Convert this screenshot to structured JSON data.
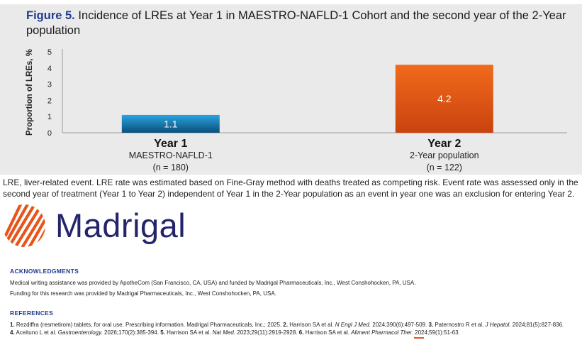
{
  "figure": {
    "label": "Figure 5.",
    "title": "Incidence of LREs at Year 1 in MAESTRO-NAFLD-1 Cohort and the second year of the 2-Year population"
  },
  "chart_data": {
    "type": "bar",
    "categories": [
      "Year 1",
      "Year 2"
    ],
    "category_sublabels": [
      [
        "MAESTRO-NAFLD-1",
        "(n = 180)"
      ],
      [
        "2-Year population",
        "(n = 122)"
      ]
    ],
    "values": [
      1.1,
      4.2
    ],
    "value_labels": [
      "1.1",
      "4.2"
    ],
    "bar_colors": [
      "#1c8fcc",
      "#e8541a"
    ],
    "ylabel": "Proportion of LREs, %",
    "ylim": [
      0,
      5
    ],
    "yticks": [
      "0",
      "1",
      "2",
      "3",
      "4",
      "5"
    ],
    "grid": false
  },
  "footnote": "LRE, liver-related event. LRE rate was estimated based on Fine-Gray method with deaths treated as competing risk. Event rate was assessed only in the second year of treatment (Year 1 to Year 2) independent of Year 1 in the 2-Year population as an event in year one was an exclusion for entering Year 2.",
  "logo": {
    "text": "Madrigal",
    "icon": "madrigal-logo-icon",
    "color": "#e8541a"
  },
  "acknowledgments": {
    "heading": "ACKNOWLEDGMENTS",
    "lines": [
      "Medical writing assistance was provided by ApotheCom (San Francisco, CA, USA) and funded by Madrigal Pharmaceuticals, Inc., West Conshohocken, PA, USA.",
      "Funding for this research was provided by Madrigal Pharmaceuticals, Inc., West Conshohocken, PA, USA."
    ]
  },
  "references": {
    "heading": "REFERENCES",
    "items": [
      {
        "num": "1.",
        "text": "Rezdiffra (resmetirom) tablets, for oral use. Prescribing information. Madrigal Pharmaceuticals, Inc.; 2025."
      },
      {
        "num": "2.",
        "authors": "Harrison SA et al.",
        "journal": "N Engl J Med.",
        "cite": "2024;390(6):497-509."
      },
      {
        "num": "3.",
        "authors": "Paternostro R et al.",
        "journal": "J Hepatol.",
        "cite": "2024;81(5):827-836."
      },
      {
        "num": "4.",
        "authors": "Aceituno L et al.",
        "journal": "Gastroenterology.",
        "cite": "2026;170(2):385-394."
      },
      {
        "num": "5.",
        "authors": "Harrison SA et al.",
        "journal": "Nat Med.",
        "cite": "2023;29(11):2919-2928."
      },
      {
        "num": "6.",
        "authors": "Harrison SA et al.",
        "journal": "Aliment Pharmacol Ther.",
        "cite": "2024;59(1):51-63."
      }
    ]
  }
}
